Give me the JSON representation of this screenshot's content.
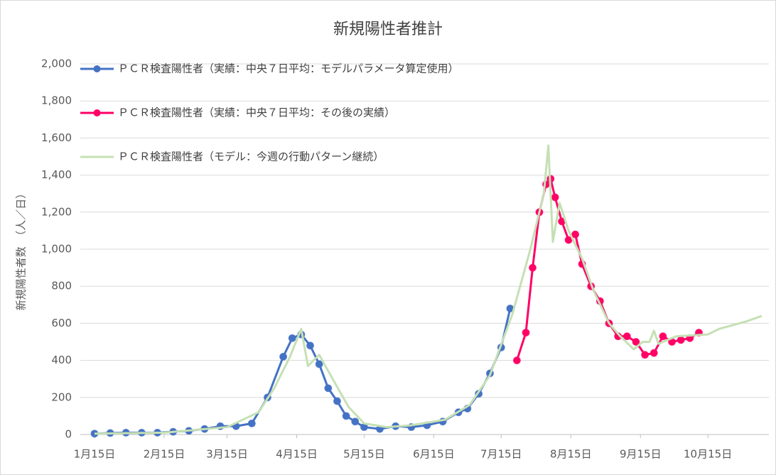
{
  "chart_data": {
    "type": "line",
    "title": "新規陽性者推計",
    "y_label": "新規陽性者数　（人／日）",
    "xlim": [
      "01-15",
      "11-08"
    ],
    "xticks": [
      {
        "value": "01-15",
        "label": "1月15日"
      },
      {
        "value": "02-15",
        "label": "2月15日"
      },
      {
        "value": "03-15",
        "label": "3月15日"
      },
      {
        "value": "04-15",
        "label": "4月15日"
      },
      {
        "value": "05-15",
        "label": "5月15日"
      },
      {
        "value": "06-15",
        "label": "6月15日"
      },
      {
        "value": "07-15",
        "label": "7月15日"
      },
      {
        "value": "08-15",
        "label": "8月15日"
      },
      {
        "value": "09-15",
        "label": "9月15日"
      },
      {
        "value": "10-15",
        "label": "10月15日"
      }
    ],
    "ylim": [
      0,
      2000
    ],
    "yticks": [
      0,
      200,
      400,
      600,
      800,
      {
        "value": 1000,
        "label": "1,000"
      },
      {
        "value": 1200,
        "label": "1,200"
      },
      {
        "value": 1400,
        "label": "1,400"
      },
      {
        "value": 1600,
        "label": "1,600"
      },
      {
        "value": 1800,
        "label": "1,800"
      },
      {
        "value": 2000,
        "label": "2,000"
      }
    ],
    "grid": true,
    "series": [
      {
        "name": "ＰＣＲ検査陽性者（実績：中央７日平均：モデルパラメータ算定使用）",
        "color": "#4472c4",
        "markers": true,
        "x": [
          "01-15",
          "01-22",
          "01-29",
          "02-05",
          "02-12",
          "02-19",
          "02-26",
          "03-05",
          "03-12",
          "03-19",
          "03-26",
          "04-02",
          "04-09",
          "04-13",
          "04-17",
          "04-21",
          "04-25",
          "04-29",
          "05-03",
          "05-07",
          "05-11",
          "05-15",
          "05-22",
          "05-29",
          "06-05",
          "06-12",
          "06-19",
          "06-26",
          "06-30",
          "07-05",
          "07-10",
          "07-15",
          "07-19"
        ],
        "values": [
          5,
          8,
          10,
          10,
          10,
          15,
          20,
          30,
          45,
          45,
          60,
          200,
          420,
          520,
          540,
          480,
          380,
          250,
          180,
          100,
          70,
          40,
          30,
          45,
          40,
          50,
          70,
          120,
          140,
          220,
          330,
          470,
          680
        ]
      },
      {
        "name": "ＰＣＲ検査陽性者（実績：中央７日平均：その後の実績）",
        "color": "#ff0066",
        "markers": true,
        "x": [
          "07-22",
          "07-26",
          "07-29",
          "08-01",
          "08-04",
          "08-06",
          "08-08",
          "08-11",
          "08-14",
          "08-17",
          "08-20",
          "08-24",
          "08-28",
          "09-01",
          "09-05",
          "09-09",
          "09-13",
          "09-17",
          "09-21",
          "09-25",
          "09-29",
          "10-03",
          "10-07",
          "10-11"
        ],
        "values": [
          400,
          550,
          900,
          1200,
          1350,
          1380,
          1280,
          1150,
          1050,
          1080,
          920,
          800,
          720,
          600,
          530,
          530,
          500,
          430,
          440,
          530,
          500,
          510,
          520,
          550
        ]
      },
      {
        "name": "ＰＣＲ検査陽性者（モデル：今週の行動パターン継続）",
        "color": "#c5e0b4",
        "markers": false,
        "x": [
          "01-15",
          "02-15",
          "03-15",
          "03-29",
          "04-05",
          "04-12",
          "04-17",
          "04-20",
          "04-25",
          "05-01",
          "05-08",
          "05-15",
          "05-25",
          "06-05",
          "06-20",
          "07-01",
          "07-10",
          "07-20",
          "07-28",
          "08-03",
          "08-05",
          "08-07",
          "08-10",
          "08-14",
          "08-20",
          "08-25",
          "09-01",
          "09-06",
          "09-12",
          "09-16",
          "09-19",
          "09-21",
          "09-23",
          "10-01",
          "10-15",
          "10-20",
          "11-01",
          "11-08"
        ],
        "values": [
          5,
          10,
          40,
          120,
          250,
          420,
          570,
          370,
          430,
          300,
          150,
          60,
          40,
          50,
          80,
          160,
          320,
          650,
          1000,
          1300,
          1560,
          1040,
          1250,
          1100,
          950,
          780,
          600,
          530,
          460,
          500,
          500,
          560,
          490,
          530,
          540,
          570,
          610,
          640
        ]
      }
    ]
  }
}
